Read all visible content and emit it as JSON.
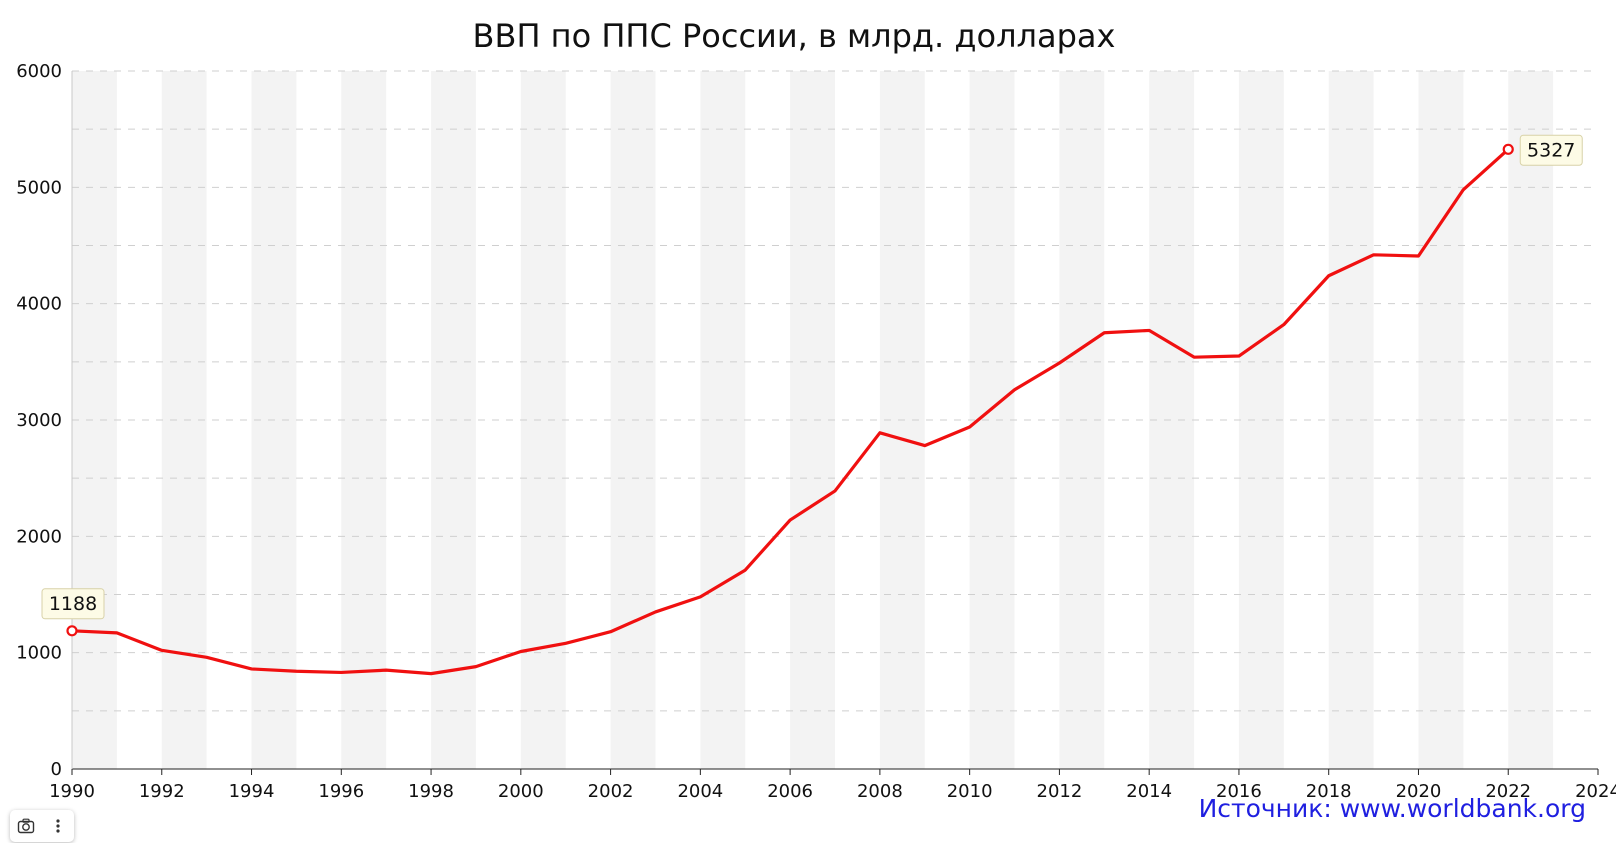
{
  "chart_data": {
    "type": "line",
    "title": "ВВП по ППС России, в млрд. долларах",
    "xlabel": "",
    "ylabel": "",
    "xlim": [
      1990,
      2024
    ],
    "ylim": [
      0,
      6000
    ],
    "x_ticks": [
      "1990",
      "1992",
      "1994",
      "1996",
      "1998",
      "2000",
      "2002",
      "2004",
      "2006",
      "2008",
      "2010",
      "2012",
      "2014",
      "2016",
      "2018",
      "2020",
      "2022",
      "2024"
    ],
    "y_ticks": [
      "0",
      "1000",
      "2000",
      "3000",
      "4000",
      "5000",
      "6000"
    ],
    "grid": true,
    "legend": "none",
    "series": [
      {
        "color": "#f01010",
        "x": [
          1990,
          1991,
          1992,
          1993,
          1994,
          1995,
          1996,
          1997,
          1998,
          1999,
          2000,
          2001,
          2002,
          2003,
          2004,
          2005,
          2006,
          2007,
          2008,
          2009,
          2010,
          2011,
          2012,
          2013,
          2014,
          2015,
          2016,
          2017,
          2018,
          2019,
          2020,
          2021,
          2022
        ],
        "y": [
          1188,
          1170,
          1020,
          960,
          860,
          840,
          830,
          850,
          820,
          880,
          1010,
          1080,
          1180,
          1350,
          1480,
          1710,
          2140,
          2390,
          2890,
          2780,
          2940,
          3260,
          3490,
          3750,
          3770,
          3540,
          3550,
          3820,
          4240,
          4420,
          4410,
          4980,
          5327
        ]
      }
    ],
    "annotations": [
      {
        "x": 1990,
        "y": 1188,
        "text": "1188"
      },
      {
        "x": 2022,
        "y": 5327,
        "text": "5327"
      }
    ]
  },
  "source": {
    "text": "Источник: www.worldbank.org"
  },
  "toolbar": {
    "camera_icon": "camera-icon",
    "menu_icon": "more-vertical-icon"
  }
}
